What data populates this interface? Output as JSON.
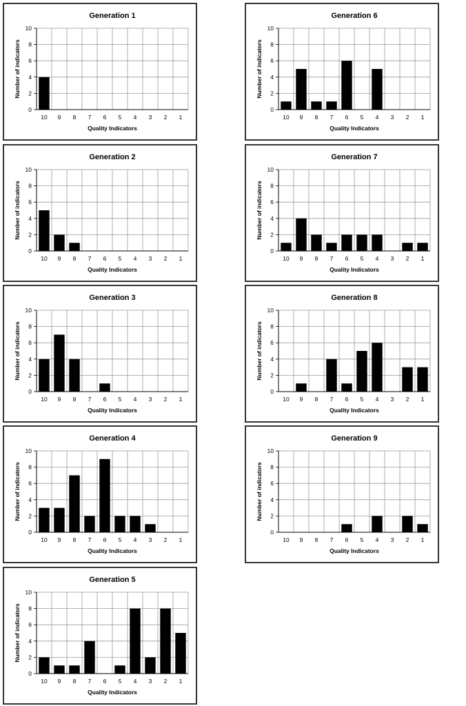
{
  "chart_data": [
    {
      "type": "bar",
      "title": "Generation 1",
      "xlabel": "Quality Indicators",
      "ylabel": "Number of indicators",
      "categories": [
        "10",
        "9",
        "8",
        "7",
        "6",
        "5",
        "4",
        "3",
        "2",
        "1"
      ],
      "values": [
        4,
        0,
        0,
        0,
        0,
        0,
        0,
        0,
        0,
        0
      ],
      "ylim": [
        0,
        10
      ],
      "yticks": [
        "0",
        "2",
        "4",
        "6",
        "8",
        "10"
      ],
      "grid": true
    },
    {
      "type": "bar",
      "title": "Generation 2",
      "xlabel": "Quality Indicators",
      "ylabel": "Number of indicators",
      "categories": [
        "10",
        "9",
        "8",
        "7",
        "6",
        "5",
        "4",
        "3",
        "2",
        "1"
      ],
      "values": [
        5,
        2,
        1,
        0,
        0,
        0,
        0,
        0,
        0,
        0
      ],
      "ylim": [
        0,
        10
      ],
      "yticks": [
        "0",
        "2",
        "4",
        "6",
        "8",
        "10"
      ],
      "grid": true
    },
    {
      "type": "bar",
      "title": "Generation 3",
      "xlabel": "Quality Indicators",
      "ylabel": "Number of indicators",
      "categories": [
        "10",
        "9",
        "8",
        "7",
        "6",
        "5",
        "4",
        "3",
        "2",
        "1"
      ],
      "values": [
        4,
        7,
        4,
        0,
        1,
        0,
        0,
        0,
        0,
        0
      ],
      "ylim": [
        0,
        10
      ],
      "yticks": [
        "0",
        "2",
        "4",
        "6",
        "8",
        "10"
      ],
      "grid": true
    },
    {
      "type": "bar",
      "title": "Generation 4",
      "xlabel": "Quality Indicators",
      "ylabel": "Number of indicators",
      "categories": [
        "10",
        "9",
        "8",
        "7",
        "6",
        "5",
        "4",
        "3",
        "2",
        "1"
      ],
      "values": [
        3,
        3,
        7,
        2,
        9,
        2,
        2,
        1,
        0,
        0
      ],
      "ylim": [
        0,
        10
      ],
      "yticks": [
        "0",
        "2",
        "4",
        "6",
        "8",
        "10"
      ],
      "grid": true
    },
    {
      "type": "bar",
      "title": "Generation 5",
      "xlabel": "Quality Indicators",
      "ylabel": "Number of indicators",
      "categories": [
        "10",
        "9",
        "8",
        "7",
        "6",
        "5",
        "4",
        "3",
        "2",
        "1"
      ],
      "values": [
        2,
        1,
        1,
        4,
        0,
        1,
        8,
        2,
        8,
        5
      ],
      "ylim": [
        0,
        10
      ],
      "yticks": [
        "0",
        "2",
        "4",
        "6",
        "8",
        "10"
      ],
      "grid": true
    },
    {
      "type": "bar",
      "title": "Generation 6",
      "xlabel": "Quality Indicators",
      "ylabel": "Number of indicators",
      "categories": [
        "10",
        "9",
        "8",
        "7",
        "6",
        "5",
        "4",
        "3",
        "2",
        "1"
      ],
      "values": [
        1,
        5,
        1,
        1,
        6,
        0,
        5,
        0,
        0,
        0
      ],
      "ylim": [
        0,
        10
      ],
      "yticks": [
        "0",
        "2",
        "4",
        "6",
        "8",
        "10"
      ],
      "grid": true
    },
    {
      "type": "bar",
      "title": "Generation 7",
      "xlabel": "Quality Indicators",
      "ylabel": "Number of indicators",
      "categories": [
        "10",
        "9",
        "8",
        "7",
        "6",
        "5",
        "4",
        "3",
        "2",
        "1"
      ],
      "values": [
        1,
        4,
        2,
        1,
        2,
        2,
        2,
        0,
        1,
        1
      ],
      "ylim": [
        0,
        10
      ],
      "yticks": [
        "0",
        "2",
        "4",
        "6",
        "8",
        "10"
      ],
      "grid": true
    },
    {
      "type": "bar",
      "title": "Generation 8",
      "xlabel": "Quality Indicators",
      "ylabel": "Number of indicators",
      "categories": [
        "10",
        "9",
        "8",
        "7",
        "6",
        "5",
        "4",
        "3",
        "2",
        "1"
      ],
      "values": [
        0,
        1,
        0,
        4,
        1,
        5,
        6,
        0,
        3,
        3
      ],
      "ylim": [
        0,
        10
      ],
      "yticks": [
        "0",
        "2",
        "4",
        "6",
        "8",
        "10"
      ],
      "grid": true
    },
    {
      "type": "bar",
      "title": "Generation 9",
      "xlabel": "Quality Indicators",
      "ylabel": "Number of indicators",
      "categories": [
        "10",
        "9",
        "8",
        "7",
        "6",
        "5",
        "4",
        "3",
        "2",
        "1"
      ],
      "values": [
        0,
        0,
        0,
        0,
        1,
        0,
        2,
        0,
        2,
        1
      ],
      "ylim": [
        0,
        10
      ],
      "yticks": [
        "0",
        "2",
        "4",
        "6",
        "8",
        "10"
      ],
      "grid": true
    }
  ]
}
